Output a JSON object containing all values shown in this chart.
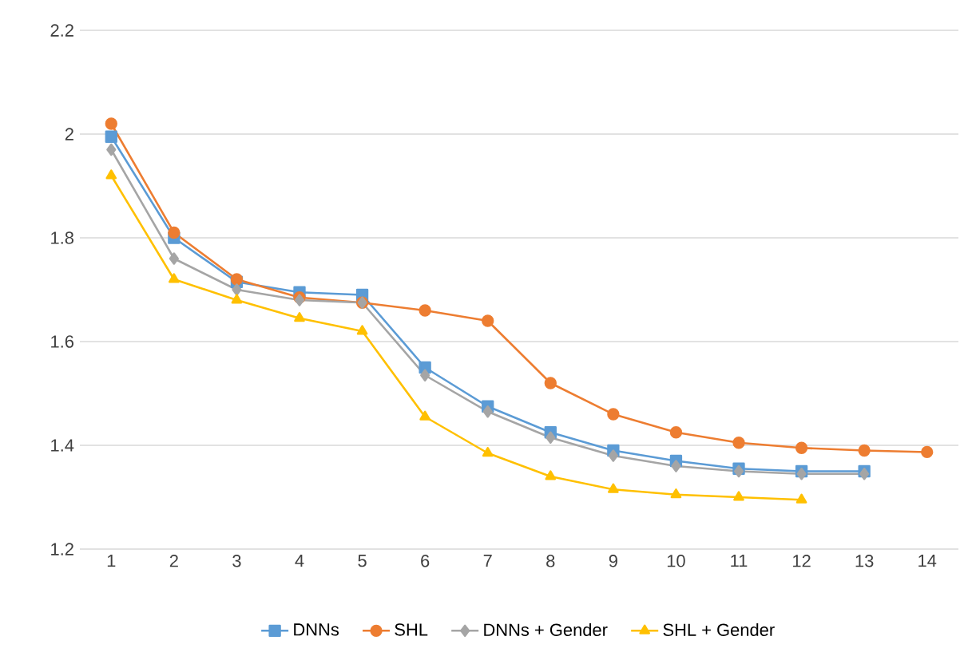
{
  "chart_data": {
    "type": "line",
    "categories": [
      "1",
      "2",
      "3",
      "4",
      "5",
      "6",
      "7",
      "8",
      "9",
      "10",
      "11",
      "12",
      "13",
      "14"
    ],
    "ylim": [
      1.2,
      2.2
    ],
    "yticks": [
      1.2,
      1.4,
      1.6,
      1.8,
      2,
      2.2
    ],
    "grid": "y",
    "legend": "bottom",
    "series": [
      {
        "name": "DNNs",
        "color": "#5b9bd5",
        "marker": "square",
        "values": [
          1.995,
          1.8,
          1.715,
          1.695,
          1.69,
          1.55,
          1.475,
          1.425,
          1.39,
          1.37,
          1.355,
          1.35,
          1.35,
          null
        ]
      },
      {
        "name": "SHL",
        "color": "#ed7d31",
        "marker": "circle",
        "values": [
          2.02,
          1.81,
          1.72,
          1.685,
          1.675,
          1.66,
          1.64,
          1.52,
          1.46,
          1.425,
          1.405,
          1.395,
          1.39,
          1.387
        ]
      },
      {
        "name": "DNNs + Gender",
        "color": "#a5a5a5",
        "marker": "diamond",
        "values": [
          1.97,
          1.76,
          1.7,
          1.68,
          1.675,
          1.535,
          1.465,
          1.415,
          1.38,
          1.36,
          1.35,
          1.345,
          1.345,
          null
        ]
      },
      {
        "name": "SHL + Gender",
        "color": "#ffc000",
        "marker": "triangle",
        "values": [
          1.92,
          1.72,
          1.68,
          1.645,
          1.62,
          1.455,
          1.385,
          1.34,
          1.315,
          1.305,
          1.3,
          1.295,
          null,
          null
        ]
      }
    ]
  }
}
